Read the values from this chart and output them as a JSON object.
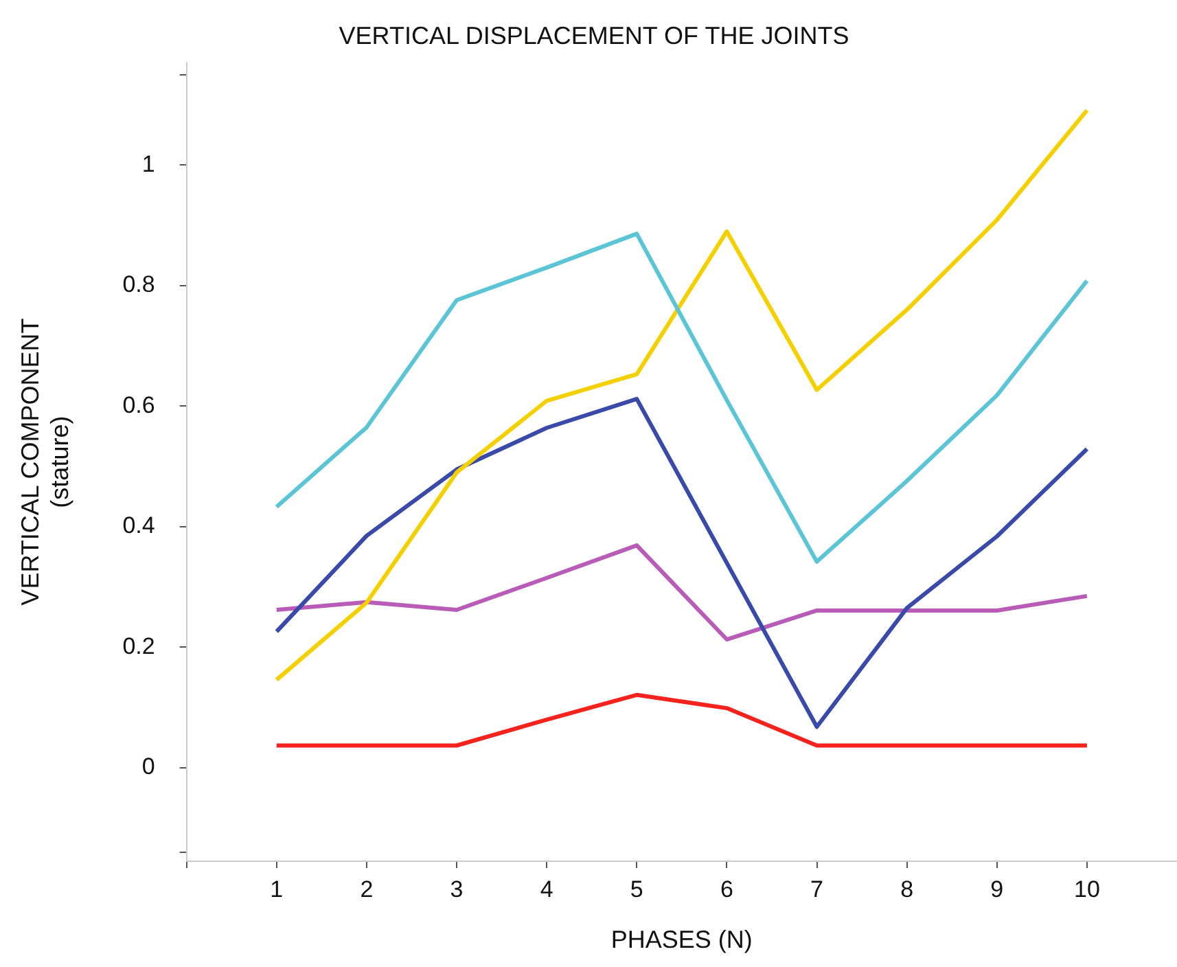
{
  "chart_data": {
    "type": "line",
    "title": "VERTICAL DISPLACEMENT OF THE JOINTS",
    "xlabel": "PHASES (N)",
    "ylabel": "VERTICAL COMPONENT\n(stature)",
    "x": [
      1,
      2,
      3,
      4,
      5,
      6,
      7,
      8,
      9,
      10
    ],
    "series": [
      {
        "color": "#5bc5d6",
        "values": [
          0.433,
          0.565,
          0.776,
          0.83,
          0.886,
          0.61,
          0.342,
          0.476,
          0.618,
          0.808
        ]
      },
      {
        "color": "#f5d000",
        "values": [
          0.146,
          0.274,
          0.49,
          0.609,
          0.653,
          0.89,
          0.627,
          0.76,
          0.909,
          1.091
        ]
      },
      {
        "color": "#3a4aa8",
        "values": [
          0.226,
          0.385,
          0.495,
          0.564,
          0.612,
          0.34,
          0.068,
          0.265,
          0.384,
          0.529
        ]
      },
      {
        "color": "#b85cb8",
        "values": [
          0.262,
          0.275,
          0.262,
          0.315,
          0.369,
          0.213,
          0.261,
          0.261,
          0.261,
          0.285
        ]
      },
      {
        "color": "#f5231e",
        "values": [
          0.037,
          0.037,
          0.037,
          0.08,
          0.121,
          0.099,
          0.037,
          0.037,
          0.037,
          0.037
        ]
      }
    ],
    "xlim": [
      0,
      11
    ],
    "xticks": [
      {
        "value": 0,
        "label": null
      },
      1,
      2,
      3,
      4,
      5,
      6,
      7,
      8,
      9,
      10
    ],
    "ylim": [
      -0.155,
      1.17
    ],
    "yticks": [
      {
        "value": -0.14,
        "label": null
      },
      0,
      0.2,
      0.4,
      0.6,
      0.8,
      1,
      {
        "value": 1.15,
        "label": null
      }
    ],
    "grid": false,
    "legend": false,
    "marker": "none",
    "line_style": "solid"
  }
}
